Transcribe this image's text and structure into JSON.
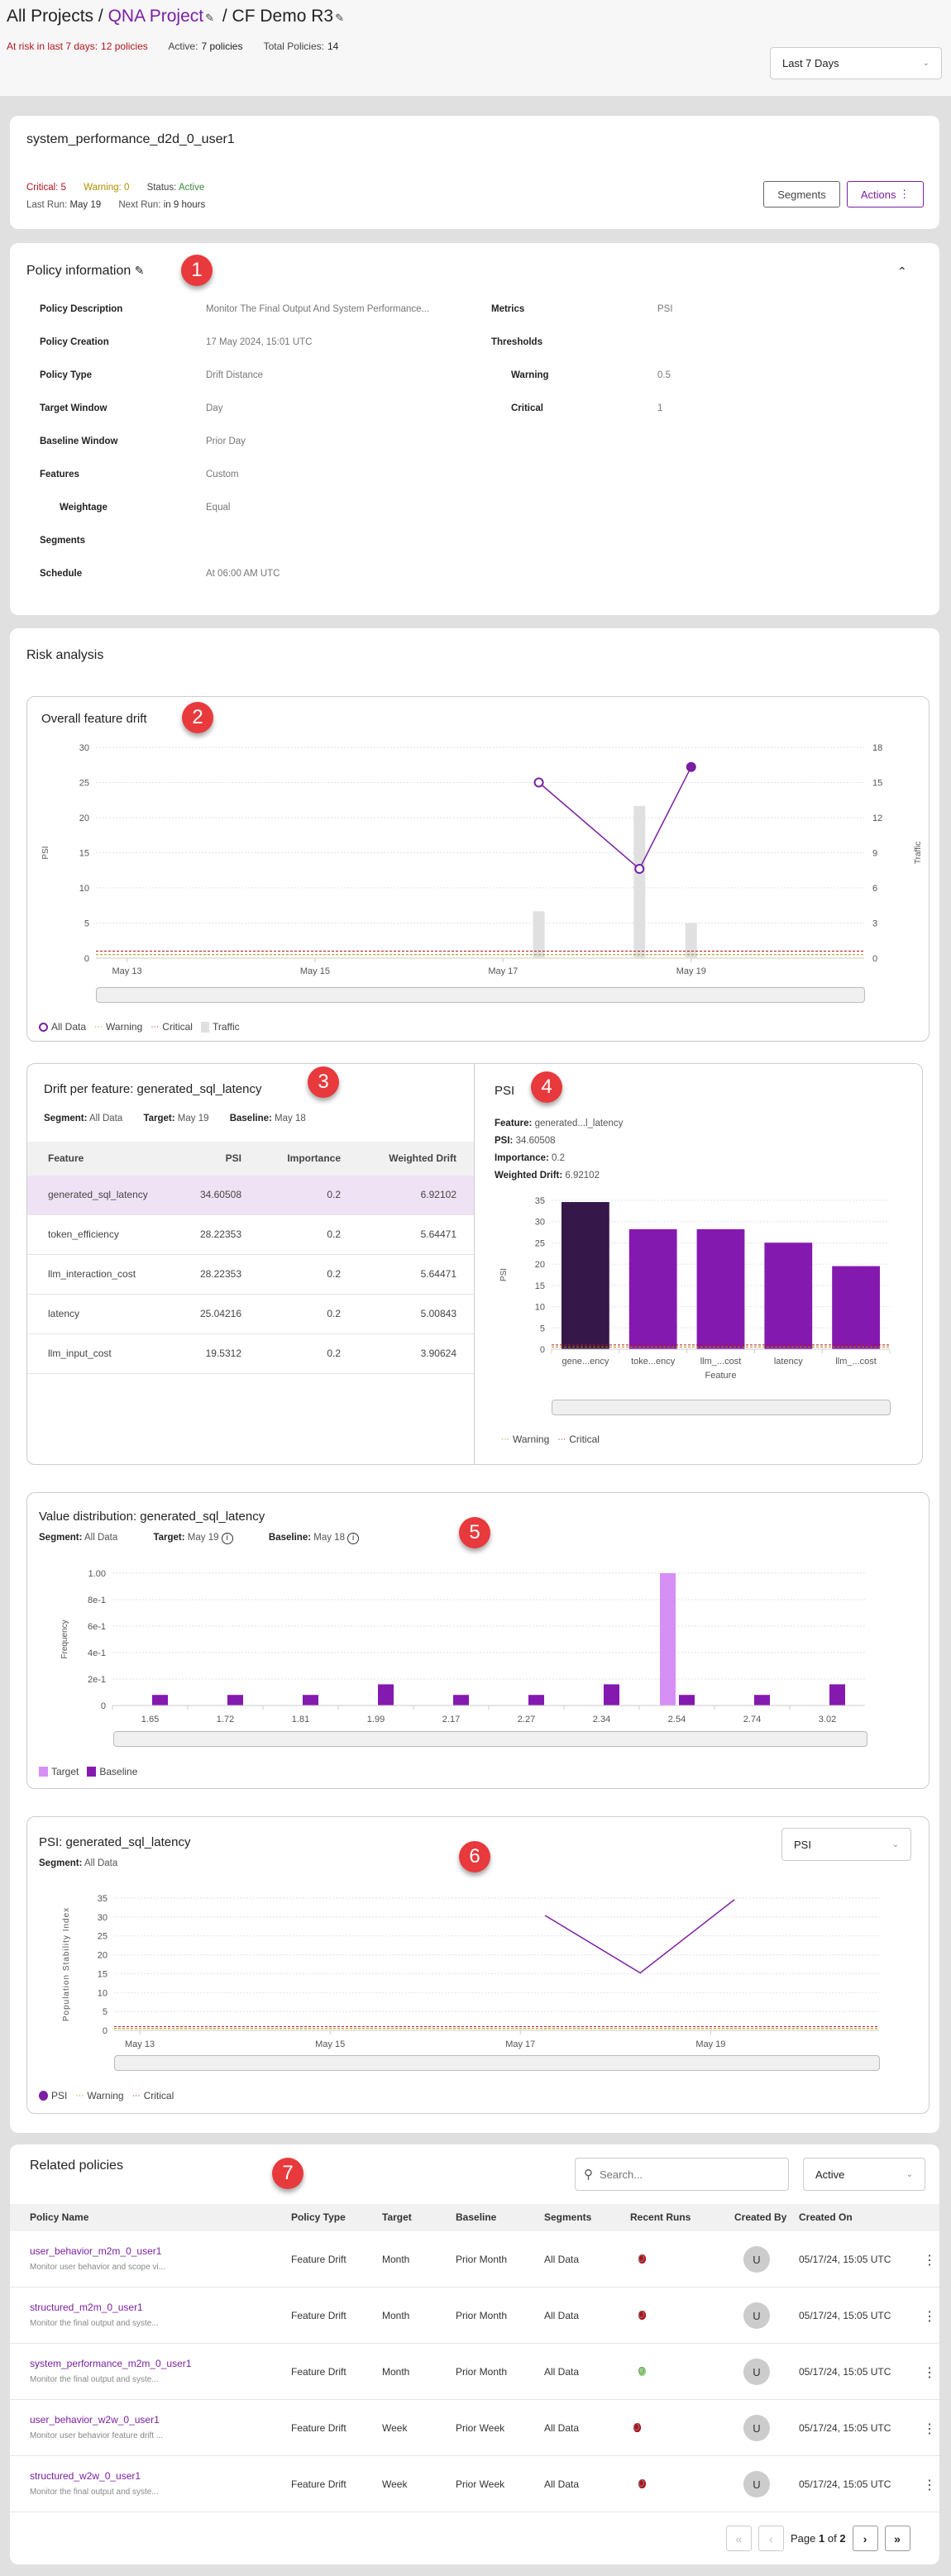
{
  "header": {
    "breadcrumb": {
      "root": "All Projects",
      "project": "QNA Project",
      "model": "CF Demo R3",
      "sep": "/"
    },
    "stats": {
      "at_risk_label": "At risk in last 7 days:",
      "at_risk_value": "12 policies",
      "active_label": "Active:",
      "active_value": "7 policies",
      "total_label": "Total Policies:",
      "total_value": "14"
    },
    "range_select": "Last 7 Days"
  },
  "policy": {
    "name": "system_performance_d2d_0_user1",
    "critical_label": "Critical:",
    "critical_value": "5",
    "warning_label": "Warning:",
    "warning_value": "0",
    "status_label": "Status:",
    "status_value": "Active",
    "last_run_label": "Last Run:",
    "last_run_value": "May 19",
    "next_run_label": "Next Run:",
    "next_run_value": "in 9 hours",
    "segments_button": "Segments",
    "actions_button": "Actions"
  },
  "policy_info": {
    "title": "Policy information",
    "left": [
      {
        "label": "Policy Description",
        "value": "Monitor The Final Output And System Performance..."
      },
      {
        "label": "Policy Creation",
        "value": "17 May 2024, 15:01 UTC"
      },
      {
        "label": "Policy Type",
        "value": "Drift Distance"
      },
      {
        "label": "Target Window",
        "value": "Day"
      },
      {
        "label": "Baseline Window",
        "value": "Prior Day"
      },
      {
        "label": "Features",
        "value": "Custom"
      },
      {
        "label": "Weightage",
        "value": "Equal"
      },
      {
        "label": "Segments",
        "value": ""
      },
      {
        "label": "Schedule",
        "value": "At 06:00 AM UTC"
      }
    ],
    "right": [
      {
        "label": "Metrics",
        "value": "PSI"
      },
      {
        "label": "Thresholds",
        "value": ""
      },
      {
        "label": "Warning",
        "value": "0.5"
      },
      {
        "label": "Critical",
        "value": "1"
      }
    ]
  },
  "risk": {
    "title": "Risk analysis"
  },
  "annotations": [
    "1",
    "2",
    "3",
    "4",
    "5",
    "6",
    "7"
  ],
  "drift_table": {
    "title": "Drift per feature: generated_sql_latency",
    "segment_label": "Segment:",
    "segment_value": "All Data",
    "target_label": "Target:",
    "target_value": "May 19",
    "baseline_label": "Baseline:",
    "baseline_value": "May 18",
    "columns": [
      "Feature",
      "PSI",
      "Importance",
      "Weighted Drift"
    ],
    "rows": [
      [
        "generated_sql_latency",
        "34.60508",
        "0.2",
        "6.92102"
      ],
      [
        "token_efficiency",
        "28.22353",
        "0.2",
        "5.64471"
      ],
      [
        "llm_interaction_cost",
        "28.22353",
        "0.2",
        "5.64471"
      ],
      [
        "latency",
        "25.04216",
        "0.2",
        "5.00843"
      ],
      [
        "llm_input_cost",
        "19.5312",
        "0.2",
        "3.90624"
      ]
    ]
  },
  "psi_detail": {
    "title": "PSI",
    "feature_label": "Feature:",
    "feature_value": "generated...l_latency",
    "psi_label": "PSI:",
    "psi_value": "34.60508",
    "importance_label": "Importance:",
    "importance_value": "0.2",
    "wd_label": "Weighted Drift:",
    "wd_value": "6.92102"
  },
  "colors": {
    "accent": "#7b1fa2",
    "line": "#7b1fa2",
    "bar": "#8419b0",
    "bar_selected": "#36174a",
    "target": "#d68ff5",
    "traffic": "#e0e0e0",
    "warning": "#b08a00",
    "critical": "#b0141e",
    "critical_text": "#b0141e",
    "green": "#8fd47c"
  },
  "chart_data": [
    {
      "id": "overall-feature-drift",
      "title": "Overall feature drift",
      "type": "line",
      "ylabel": "PSI",
      "y2label": "Traffic",
      "ylim": [
        0,
        30
      ],
      "y2lim": [
        0,
        18
      ],
      "yticks": [
        0,
        5,
        10,
        15,
        20,
        25,
        30
      ],
      "y2ticks": [
        0,
        3,
        6,
        9,
        12,
        15,
        18
      ],
      "xlim": [
        12.67,
        20.84
      ],
      "xticks": [
        {
          "x": 13,
          "label": "May 13"
        },
        {
          "x": 15,
          "label": "May 15"
        },
        {
          "x": 17,
          "label": "May 17"
        },
        {
          "x": 19,
          "label": "May 19"
        }
      ],
      "series": [
        {
          "name": "All Data",
          "x": [
            17.38,
            18.45,
            19.0
          ],
          "y": [
            25,
            12.7,
            27.2
          ]
        },
        {
          "name": "Traffic",
          "x": [
            17.38,
            18.45,
            19.0
          ],
          "y": [
            4,
            13,
            3
          ]
        }
      ],
      "thresholds": {
        "warning": 0.5,
        "critical": 1
      },
      "legend": [
        "All Data",
        "Warning",
        "Critical",
        "Traffic"
      ],
      "grid": true,
      "legend_position": "bottom-left"
    },
    {
      "id": "psi-by-feature",
      "title": "PSI",
      "type": "bar",
      "categories": [
        "gene...ency",
        "toke...ency",
        "llm_...cost",
        "latency",
        "llm_...cost"
      ],
      "values": [
        34.60508,
        28.22353,
        28.22353,
        25.04216,
        19.5312
      ],
      "selected": 0,
      "xlabel": "Feature",
      "ylabel": "PSI",
      "ylim": [
        0,
        35
      ],
      "yticks": [
        0,
        5,
        10,
        15,
        20,
        25,
        30,
        35
      ],
      "thresholds": {
        "warning": 0.5,
        "critical": 1
      },
      "legend": [
        "Warning",
        "Critical"
      ],
      "grid": true,
      "legend_position": "bottom-left"
    },
    {
      "id": "value-distribution",
      "title": "Value distribution: generated_sql_latency",
      "type": "bar",
      "segment_label": "Segment:",
      "segment_value": "All Data",
      "target_label": "Target:",
      "target_value": "May 19",
      "baseline_label": "Baseline:",
      "baseline_value": "May 18",
      "categories": [
        "1.65",
        "1.72",
        "1.81",
        "1.99",
        "2.17",
        "2.27",
        "2.34",
        "2.54",
        "2.74",
        "3.02"
      ],
      "series": [
        {
          "name": "Target",
          "values": [
            0,
            0,
            0,
            0,
            0,
            0,
            0,
            1.0,
            0,
            0
          ]
        },
        {
          "name": "Baseline",
          "values": [
            0.08,
            0.08,
            0.08,
            0.16,
            0.08,
            0.08,
            0.16,
            0.08,
            0.08,
            0.16
          ]
        }
      ],
      "ylabel": "Frequency",
      "ylim": [
        0,
        1
      ],
      "ytick_labels": [
        "0",
        "2e-1",
        "4e-1",
        "6e-1",
        "8e-1",
        "1.00"
      ],
      "legend": [
        "Target",
        "Baseline"
      ],
      "grid": true,
      "legend_position": "bottom-left"
    },
    {
      "id": "psi-over-time",
      "title": "PSI: generated_sql_latency",
      "type": "line",
      "segment_label": "Segment:",
      "segment_value": "All Data",
      "metric_select": "PSI",
      "ylabel": "Population Stability Index",
      "ylim": [
        0,
        35
      ],
      "yticks": [
        0,
        5,
        10,
        15,
        20,
        25,
        30,
        35
      ],
      "xlim": [
        12.73,
        20.77
      ],
      "xticks": [
        {
          "x": 13,
          "label": "May 13"
        },
        {
          "x": 15,
          "label": "May 15"
        },
        {
          "x": 17,
          "label": "May 17"
        },
        {
          "x": 19,
          "label": "May 19"
        }
      ],
      "series": [
        {
          "name": "PSI",
          "x": [
            17.26,
            18.26,
            19.25
          ],
          "y": [
            30.4,
            15.2,
            34.6
          ]
        }
      ],
      "thresholds": {
        "warning": 0.5,
        "critical": 1
      },
      "legend": [
        "PSI",
        "Warning",
        "Critical"
      ],
      "grid": true,
      "legend_position": "bottom-left"
    }
  ],
  "related": {
    "title": "Related policies",
    "search_placeholder": "Search...",
    "status_select": "Active",
    "columns": [
      "Policy Name",
      "Policy Type",
      "Target",
      "Baseline",
      "Segments",
      "Recent Runs",
      "Created By",
      "Created On"
    ],
    "rows": [
      {
        "name": "user_behavior_m2m_0_user1",
        "desc": "Monitor user behavior and scope vi...",
        "type": "Feature Drift",
        "target": "Month",
        "baseline": "Prior Month",
        "segments": "All Data",
        "runs": [
          "critical",
          "critical",
          "critical",
          "critical",
          "pending"
        ],
        "created_by": "U",
        "created_on": "05/17/24, 15:05 UTC"
      },
      {
        "name": "structured_m2m_0_user1",
        "desc": "Monitor the final output and syste...",
        "type": "Feature Drift",
        "target": "Month",
        "baseline": "Prior Month",
        "segments": "All Data",
        "runs": [
          "critical",
          "critical",
          "critical",
          "critical",
          "pending"
        ],
        "created_by": "U",
        "created_on": "05/17/24, 15:05 UTC"
      },
      {
        "name": "system_performance_m2m_0_user1",
        "desc": "Monitor the final output and syste...",
        "type": "Feature Drift",
        "target": "Month",
        "baseline": "Prior Month",
        "segments": "All Data",
        "runs": [
          "ok",
          "ok",
          "ok",
          "ok",
          "pending"
        ],
        "created_by": "U",
        "created_on": "05/17/24, 15:05 UTC"
      },
      {
        "name": "user_behavior_w2w_0_user1",
        "desc": "Monitor user behavior feature drift ...",
        "type": "Feature Drift",
        "target": "Week",
        "baseline": "Prior Week",
        "segments": "All Data",
        "runs": [
          "critical",
          "critical",
          "critical",
          "critical",
          "critical",
          "pending"
        ],
        "created_by": "U",
        "created_on": "05/17/24, 15:05 UTC"
      },
      {
        "name": "structured_w2w_0_user1",
        "desc": "Monitor the final output and syste...",
        "type": "Feature Drift",
        "target": "Week",
        "baseline": "Prior Week",
        "segments": "All Data",
        "runs": [
          "critical",
          "critical",
          "critical",
          "critical",
          "pending"
        ],
        "created_by": "U",
        "created_on": "05/17/24, 15:05 UTC"
      }
    ],
    "pagination": {
      "prefix": "Page",
      "current": "1",
      "of": "of",
      "total": "2"
    }
  }
}
